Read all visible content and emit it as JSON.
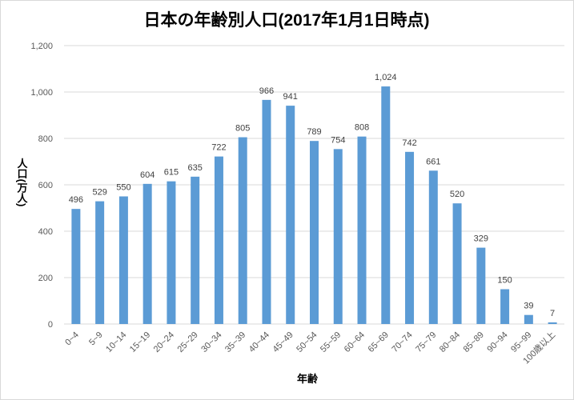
{
  "chart_data": {
    "type": "bar",
    "title": "日本の年齢別人口(2017年1月1日時点)",
    "xlabel": "年齢",
    "ylabel": "人口(万人)",
    "ylim": [
      0,
      1200
    ],
    "yticks": [
      "0",
      "200",
      "400",
      "600",
      "800",
      "1,000",
      "1,200"
    ],
    "ytick_values": [
      0,
      200,
      400,
      600,
      800,
      1000,
      1200
    ],
    "grid": true,
    "bar_color": "#5b9bd5",
    "categories": [
      "0~4",
      "5~9",
      "10~14",
      "15~19",
      "20~24",
      "25~29",
      "30~34",
      "35~39",
      "40~44",
      "45~49",
      "50~54",
      "55~59",
      "60~64",
      "65~69",
      "70~74",
      "75~79",
      "80~84",
      "85~89",
      "90~94",
      "95~99",
      "100歳以上"
    ],
    "values": [
      496,
      529,
      550,
      604,
      615,
      635,
      722,
      805,
      966,
      941,
      789,
      754,
      808,
      1024,
      742,
      661,
      520,
      329,
      150,
      39,
      7
    ],
    "value_labels": [
      "496",
      "529",
      "550",
      "604",
      "615",
      "635",
      "722",
      "805",
      "966",
      "941",
      "789",
      "754",
      "808",
      "1,024",
      "742",
      "661",
      "520",
      "329",
      "150",
      "39",
      "7"
    ]
  }
}
